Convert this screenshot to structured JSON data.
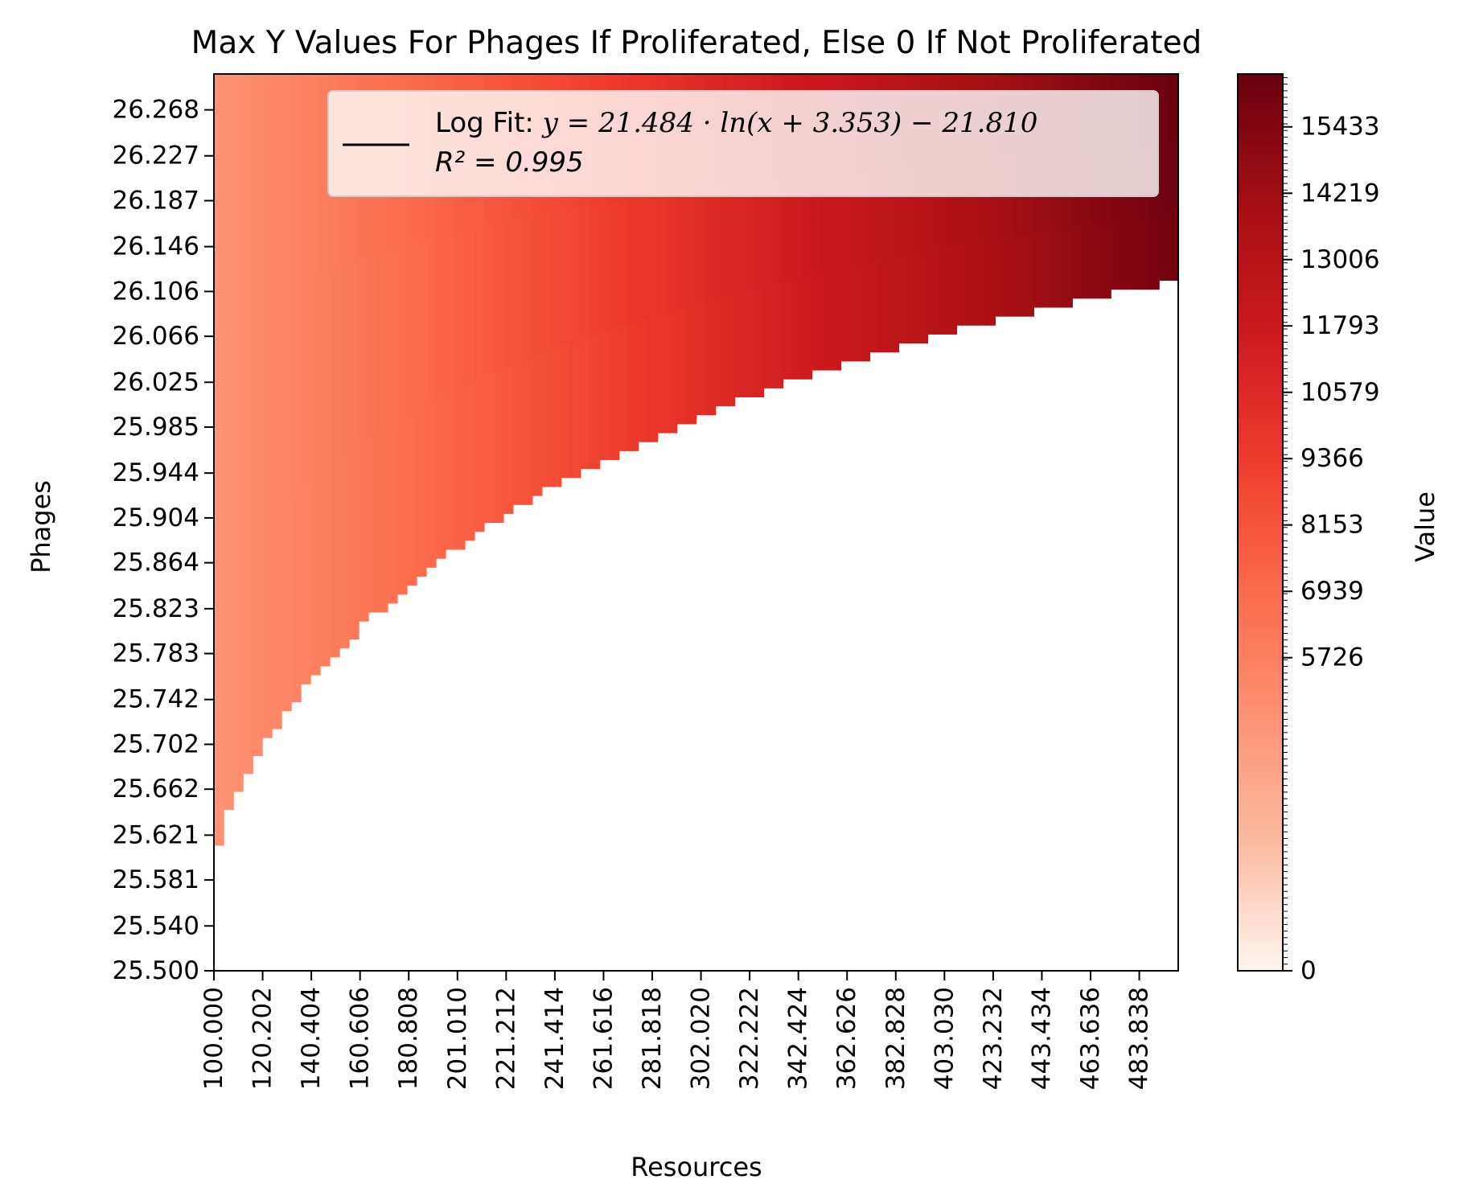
{
  "chart_data": {
    "type": "heatmap",
    "title": "Max Y Values For Phages If Proliferated, Else 0 If Not Proliferated",
    "xlabel": "Resources",
    "ylabel": "Phages",
    "colorbar_label": "Value",
    "colormap": "Reds",
    "colormap_stops": [
      "#fff5f0",
      "#fcbba1",
      "#fc9272",
      "#fb6a4a",
      "#ef3b2c",
      "#cb181d",
      "#a50f15",
      "#67000d"
    ],
    "masked_color": "#ffffff",
    "xlim": [
      100.0,
      500.0
    ],
    "ylim": [
      25.5,
      26.3
    ],
    "x_ticks": [
      "100.000",
      "120.202",
      "140.404",
      "160.606",
      "180.808",
      "201.010",
      "221.212",
      "241.414",
      "261.616",
      "281.818",
      "302.020",
      "322.222",
      "342.424",
      "362.626",
      "382.828",
      "403.030",
      "423.232",
      "443.434",
      "463.636",
      "483.838"
    ],
    "y_ticks": [
      "25.500",
      "25.540",
      "25.581",
      "25.621",
      "25.662",
      "25.702",
      "25.742",
      "25.783",
      "25.823",
      "25.864",
      "25.904",
      "25.944",
      "25.985",
      "26.025",
      "26.066",
      "26.106",
      "26.146",
      "26.187",
      "26.227",
      "26.268"
    ],
    "colorbar_ticks": [
      "0",
      "5726",
      "6939",
      "8153",
      "9366",
      "10579",
      "11793",
      "13006",
      "14219",
      "15433"
    ],
    "value_range": [
      4600,
      16400
    ],
    "boundary": {
      "x": [
        100,
        102,
        104,
        108,
        112,
        116,
        120,
        125,
        130,
        135,
        140,
        146,
        152,
        160,
        170,
        180,
        190,
        200,
        210,
        220,
        230,
        240,
        250,
        260,
        270,
        280,
        290,
        300,
        310,
        320,
        330,
        340,
        350,
        360,
        370,
        380,
        390,
        400,
        410,
        420,
        430,
        440,
        450,
        460,
        470,
        480,
        490,
        500
      ],
      "y": [
        25.592,
        25.607,
        25.625,
        25.648,
        25.665,
        25.681,
        25.695,
        25.712,
        25.727,
        25.741,
        25.754,
        25.769,
        25.783,
        25.8,
        25.82,
        25.839,
        25.856,
        25.872,
        25.887,
        25.901,
        25.914,
        25.927,
        25.939,
        25.95,
        25.96,
        25.97,
        25.98,
        25.989,
        25.998,
        26.006,
        26.014,
        26.022,
        26.029,
        26.036,
        26.043,
        26.049,
        26.056,
        26.062,
        26.068,
        26.073,
        26.079,
        26.084,
        26.089,
        26.094,
        26.099,
        26.103,
        26.108,
        26.112
      ]
    },
    "fit": {
      "label_line1": "Log Fit: y = 21.484 · ln(x + 3.353) − 21.810",
      "label_line2": "R² = 0.995",
      "label_prefix": "Log Fit: ",
      "label_equation": "y = 21.484 · ln(x + 3.353) − 21.810",
      "label_r2": "R² = 0.995",
      "a": 21.484,
      "b": 3.353,
      "c": -21.81,
      "x_range": [
        103,
        500
      ],
      "color": "#000000"
    },
    "legend_position": "top-right",
    "grid": false
  }
}
